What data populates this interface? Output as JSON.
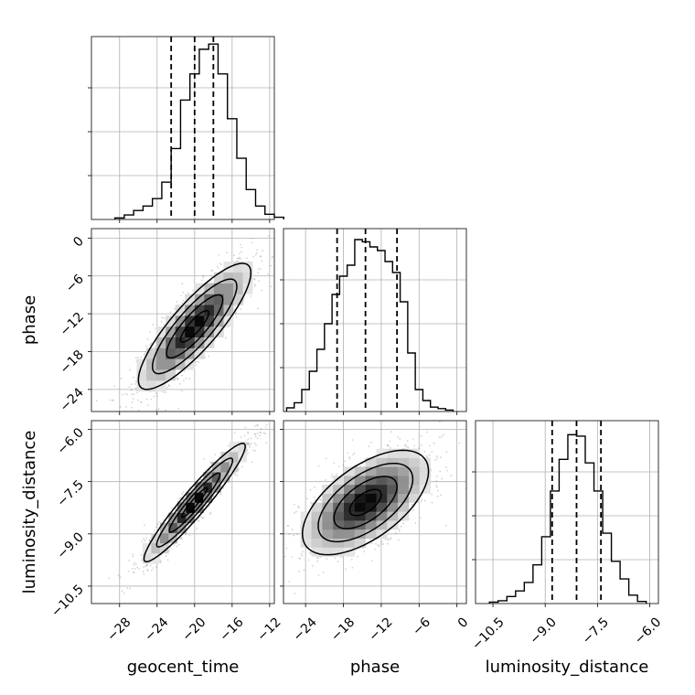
{
  "chart_data": {
    "type": "corner",
    "grid": true,
    "parameters": [
      "geocent_time",
      "phase",
      "luminosity_distance"
    ],
    "axes": {
      "geocent_time": {
        "lim": [
          -31,
          -11.5
        ],
        "ticks": [
          -28,
          -24,
          -20,
          -16,
          -12
        ],
        "tick_labels": [
          "−28",
          "−24",
          "−20",
          "−16",
          "−12"
        ]
      },
      "phase": {
        "lim": [
          -27.5,
          1.5
        ],
        "ticks": [
          -24,
          -18,
          -12,
          -6,
          0
        ],
        "tick_labels": [
          "−24",
          "−18",
          "−12",
          "−6",
          "0"
        ]
      },
      "luminosity_distance": {
        "lim": [
          -11.0,
          -5.75
        ],
        "ticks": [
          -10.5,
          -9.0,
          -7.5,
          -6.0
        ],
        "tick_labels": [
          "−10.5",
          "−9.0",
          "−7.5",
          "−6.0"
        ]
      }
    },
    "marginals": {
      "geocent_time": {
        "bin_start": -28.5,
        "bin_width": 1.0,
        "counts": [
          2,
          6,
          12,
          18,
          28,
          50,
          95,
          160,
          195,
          228,
          235,
          195,
          135,
          82,
          40,
          18,
          7,
          3
        ],
        "quantiles": [
          -22.5,
          -20.0,
          -18.0
        ],
        "ylim": [
          0,
          245
        ]
      },
      "phase": {
        "bin_start": -27.0,
        "bin_width": 1.2,
        "counts": [
          5,
          12,
          30,
          55,
          85,
          120,
          160,
          185,
          200,
          235,
          232,
          225,
          220,
          205,
          190,
          150,
          80,
          30,
          15,
          6,
          4,
          2
        ],
        "quantiles": [
          -19.0,
          -14.5,
          -9.5
        ],
        "ylim": [
          0,
          250
        ]
      },
      "luminosity_distance": {
        "bin_start": -10.6,
        "bin_width": 0.25,
        "counts": [
          2,
          4,
          10,
          18,
          30,
          55,
          95,
          160,
          205,
          240,
          238,
          200,
          160,
          100,
          60,
          35,
          12,
          3
        ],
        "quantiles": [
          -8.8,
          -8.1,
          -7.4
        ],
        "ylim": [
          0,
          260
        ]
      }
    },
    "pairs": [
      {
        "x": "geocent_time",
        "y": "phase",
        "mean": [
          -20.0,
          -14.0
        ],
        "sigma": [
          3.0,
          5.0
        ],
        "rho": 0.85,
        "contour_levels": [
          0.5,
          1.0,
          1.5,
          2.0
        ]
      },
      {
        "x": "geocent_time",
        "y": "luminosity_distance",
        "mean": [
          -20.0,
          -8.1
        ],
        "sigma": [
          2.7,
          0.85
        ],
        "rho": 0.95,
        "contour_levels": [
          0.5,
          1.0,
          1.5,
          2.0
        ]
      },
      {
        "x": "phase",
        "y": "luminosity_distance",
        "mean": [
          -14.5,
          -8.1
        ],
        "sigma": [
          5.0,
          0.75
        ],
        "rho": 0.6,
        "contour_levels": [
          0.5,
          1.0,
          1.5,
          2.0
        ]
      }
    ],
    "xlabels": [
      "geocent_time",
      "phase",
      "luminosity_distance"
    ],
    "ylabels": [
      "",
      "phase",
      "luminosity_distance"
    ]
  }
}
